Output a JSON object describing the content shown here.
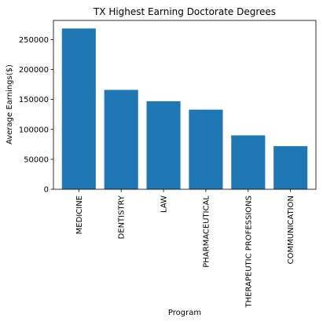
{
  "chart_data": {
    "type": "bar",
    "title": "TX Highest Earning Doctorate Degrees",
    "xlabel": "Program",
    "ylabel": "Average Earnings($)",
    "categories": [
      "MEDICINE",
      "DENTISTRY",
      "LAW",
      "PHARMACEUTICAL",
      "THERAPEUTIC PROFESSIONS",
      "COMMUNICATION"
    ],
    "values": [
      268500,
      166000,
      147000,
      133000,
      90000,
      72000
    ],
    "ylim": [
      0,
      282000
    ],
    "yticks": [
      0,
      50000,
      100000,
      150000,
      200000,
      250000
    ],
    "grid": false,
    "bar_color": "#1f77b4"
  }
}
